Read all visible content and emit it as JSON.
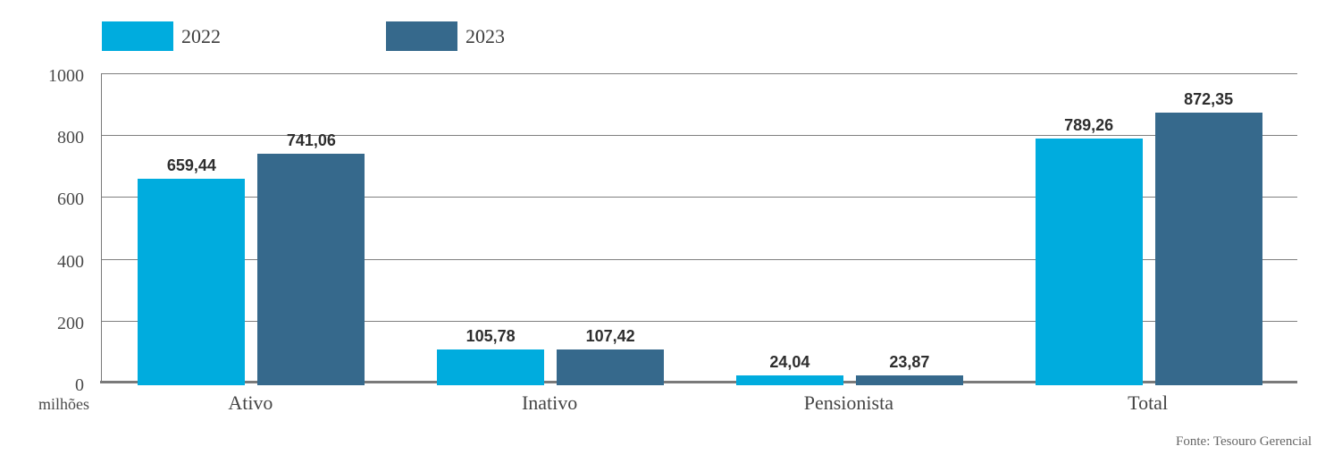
{
  "legend": {
    "items": [
      {
        "label": "2022",
        "color": "#00ACDE"
      },
      {
        "label": "2023",
        "color": "#36698C"
      }
    ]
  },
  "y_axis": {
    "unit_label": "milhões"
  },
  "footer": {
    "source": "Fonte: Tesouro Gerencial"
  },
  "chart_data": {
    "type": "bar",
    "categories": [
      "Ativo",
      "Inativo",
      "Pensionista",
      "Total"
    ],
    "series": [
      {
        "name": "2022",
        "color": "#00ACDE",
        "values": [
          659.44,
          105.78,
          24.04,
          789.26
        ],
        "labels": [
          "659,44",
          "105,78",
          "24,04",
          "789,26"
        ]
      },
      {
        "name": "2023",
        "color": "#36698C",
        "values": [
          741.06,
          107.42,
          23.87,
          872.35
        ],
        "labels": [
          "741,06",
          "107,42",
          "23,87",
          "872,35"
        ]
      }
    ],
    "title": "",
    "xlabel": "",
    "ylabel": "milhões",
    "ylim": [
      0,
      1000
    ],
    "y_ticks": [
      0,
      200,
      400,
      600,
      800,
      1000
    ],
    "grid": true,
    "legend_position": "top-left",
    "source": "Fonte: Tesouro Gerencial",
    "colors": {
      "gridline": "#7f7f7f",
      "axis": "#7a7a7a"
    }
  }
}
